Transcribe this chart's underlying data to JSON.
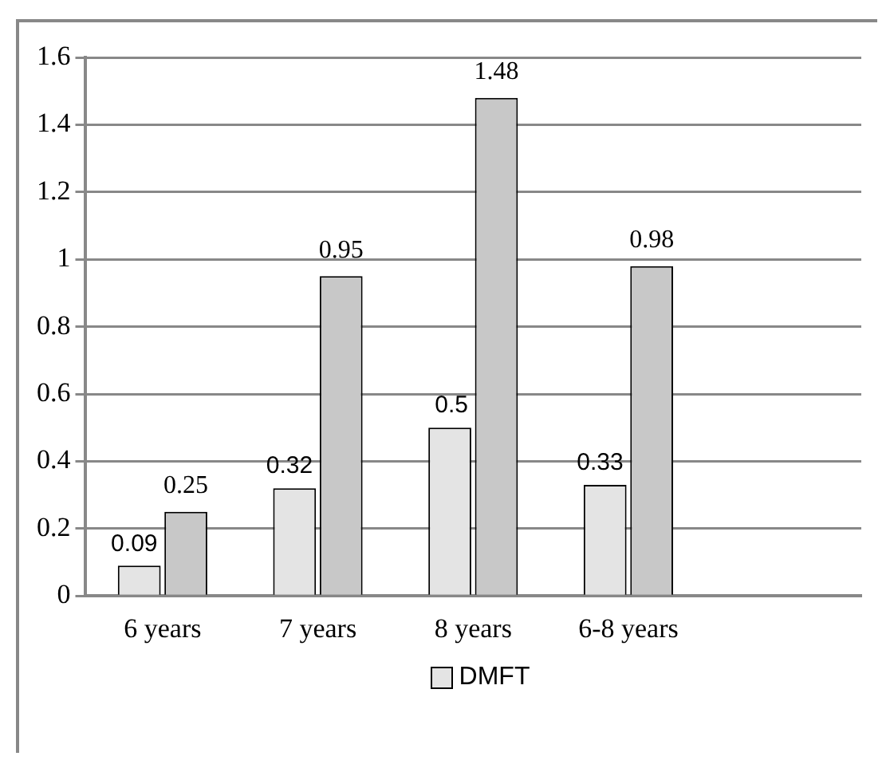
{
  "chart_data": {
    "type": "bar",
    "categories": [
      "6 years",
      "7 years",
      "8 years",
      "6-8 years",
      null
    ],
    "series": [
      {
        "name": "DMFT",
        "color": "#e4e4e4",
        "values": [
          0.09,
          0.32,
          0.5,
          0.33,
          null
        ]
      },
      {
        "color": "#c8c8c8",
        "values": [
          0.25,
          0.95,
          1.48,
          0.98,
          null
        ]
      }
    ],
    "ylim": [
      0,
      1.6
    ],
    "yticks": [
      0,
      0.2,
      0.4,
      0.6,
      0.8,
      1,
      1.2,
      1.4,
      1.6
    ],
    "grid": "y",
    "legend": "bottom",
    "data_labels": true
  }
}
